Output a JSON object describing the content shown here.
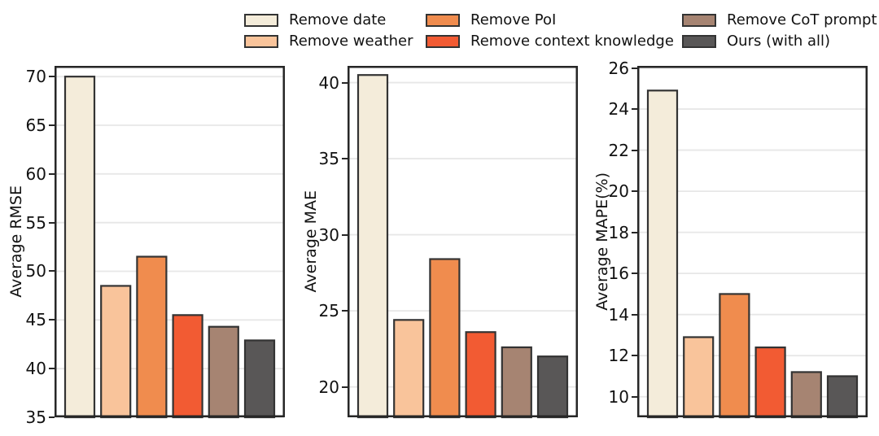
{
  "figure": {
    "background": "#ffffff"
  },
  "style": {
    "bar_edge": "#333333",
    "grid_color": "#e7e7e7",
    "axis_color": "#262626",
    "text_color": "#111111"
  },
  "legend": {
    "position": "top",
    "items": [
      {
        "label": "Remove date",
        "color": "#f4ecda",
        "swatch": "cream"
      },
      {
        "label": "Remove weather",
        "color": "#f9c49b",
        "swatch": "light-peach"
      },
      {
        "label": "Remove PoI",
        "color": "#f08c4e",
        "swatch": "orange"
      },
      {
        "label": "Remove context knowledge",
        "color": "#f25b33",
        "swatch": "red-orange"
      },
      {
        "label": "Remove CoT prompt",
        "color": "#a68472",
        "swatch": "brown"
      },
      {
        "label": "Ours (with all)",
        "color": "#595757",
        "swatch": "dark-gray"
      }
    ]
  },
  "chart_data": [
    {
      "type": "bar",
      "ylabel": "Average RMSE",
      "categories": [
        "Remove date",
        "Remove weather",
        "Remove PoI",
        "Remove context knowledge",
        "Remove CoT prompt",
        "Ours (with all)"
      ],
      "values": [
        70.0,
        48.5,
        51.5,
        45.5,
        44.3,
        42.9
      ],
      "ylim": [
        35,
        71.1
      ],
      "yticks": [
        35,
        40,
        45,
        50,
        55,
        60,
        65,
        70
      ],
      "grid": "horizontal",
      "legend_position": "top"
    },
    {
      "type": "bar",
      "ylabel": "Average MAE",
      "categories": [
        "Remove date",
        "Remove weather",
        "Remove PoI",
        "Remove context knowledge",
        "Remove CoT prompt",
        "Ours (with all)"
      ],
      "values": [
        40.5,
        24.4,
        28.4,
        23.6,
        22.6,
        22.0
      ],
      "ylim": [
        18.0,
        41.1
      ],
      "yticks": [
        20,
        25,
        30,
        35,
        40
      ],
      "grid": "horizontal",
      "legend_position": "top"
    },
    {
      "type": "bar",
      "ylabel": "Average MAPE(%)",
      "categories": [
        "Remove date",
        "Remove weather",
        "Remove PoI",
        "Remove context knowledge",
        "Remove CoT prompt",
        "Ours (with all)"
      ],
      "values": [
        24.9,
        12.9,
        15.0,
        12.4,
        11.2,
        11.0
      ],
      "ylim": [
        9.0,
        26.1
      ],
      "yticks": [
        10,
        12,
        14,
        16,
        18,
        20,
        22,
        24,
        26
      ],
      "grid": "horizontal",
      "legend_position": "top"
    }
  ]
}
